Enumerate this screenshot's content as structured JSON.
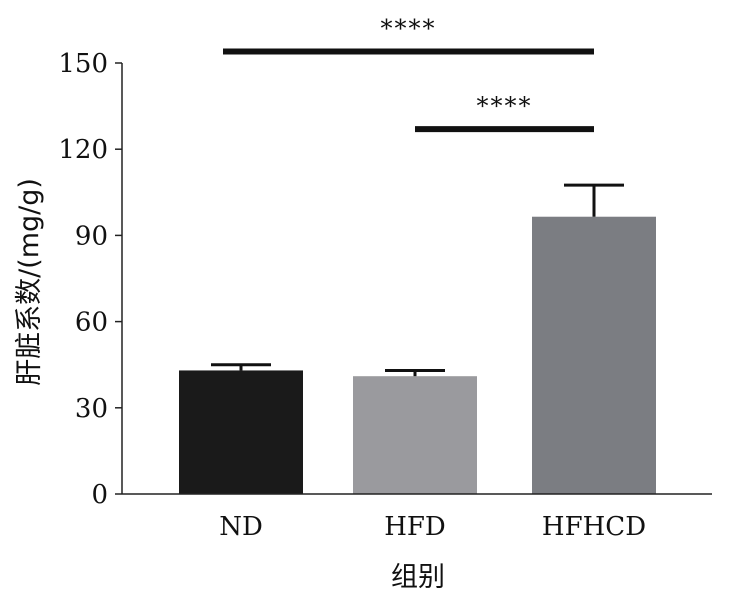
{
  "chart_data": {
    "type": "bar",
    "categories": [
      "ND",
      "HFD",
      "HFHCD"
    ],
    "values": [
      43,
      41,
      96.5
    ],
    "errors": [
      2,
      2,
      11
    ],
    "colors": [
      "#1a1a1a",
      "#9a9a9e",
      "#7b7d82"
    ],
    "xlabel": "组别",
    "ylabel": "肝脏系数/(mg/g)",
    "ylim": [
      0,
      150
    ],
    "yticks": [
      0,
      30,
      60,
      90,
      120,
      150
    ],
    "grid": false,
    "significance": [
      {
        "from": "ND",
        "to": "HFHCD",
        "label": "****",
        "y": 154
      },
      {
        "from": "HFD",
        "to": "HFHCD",
        "label": "****",
        "y": 127
      }
    ]
  }
}
